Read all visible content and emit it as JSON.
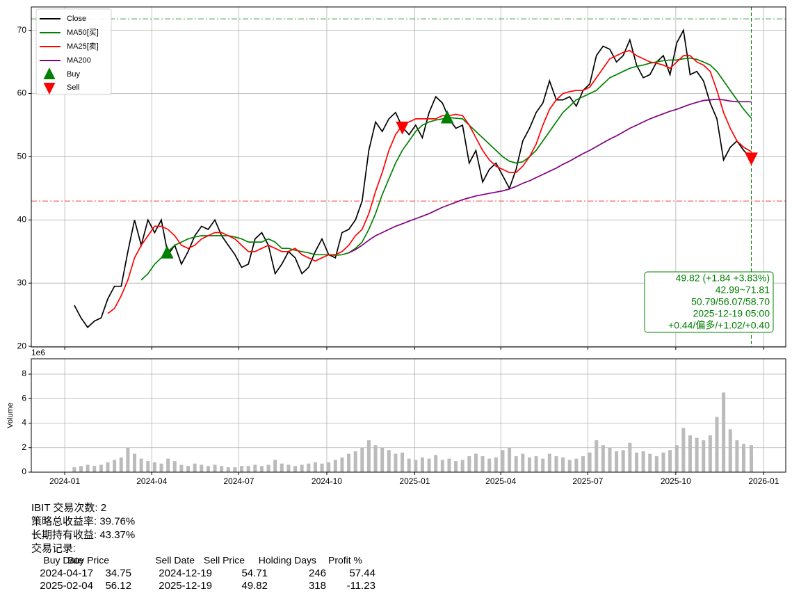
{
  "chart_data": [
    {
      "type": "line",
      "legend": "upper left",
      "grid": true,
      "ylim": [
        19.9,
        73.7
      ],
      "yticks": [
        20,
        30,
        40,
        50,
        60,
        70
      ],
      "xlim": [
        "2023-11-27",
        "2026-01-24"
      ],
      "xticks": [
        "2024-01",
        "2024-04",
        "2024-07",
        "2024-10",
        "2025-01",
        "2025-04",
        "2025-07",
        "2025-10",
        "2026-01"
      ],
      "x": [
        "2024-01-11",
        "2024-01-18",
        "2024-01-25",
        "2024-02-01",
        "2024-02-08",
        "2024-02-15",
        "2024-02-22",
        "2024-02-29",
        "2024-03-07",
        "2024-03-14",
        "2024-03-21",
        "2024-03-28",
        "2024-04-04",
        "2024-04-11",
        "2024-04-18",
        "2024-04-25",
        "2024-05-02",
        "2024-05-09",
        "2024-05-16",
        "2024-05-23",
        "2024-05-30",
        "2024-06-06",
        "2024-06-13",
        "2024-06-20",
        "2024-06-27",
        "2024-07-04",
        "2024-07-11",
        "2024-07-18",
        "2024-07-25",
        "2024-08-01",
        "2024-08-08",
        "2024-08-15",
        "2024-08-22",
        "2024-08-29",
        "2024-09-05",
        "2024-09-12",
        "2024-09-19",
        "2024-09-26",
        "2024-10-03",
        "2024-10-10",
        "2024-10-17",
        "2024-10-24",
        "2024-10-31",
        "2024-11-07",
        "2024-11-14",
        "2024-11-21",
        "2024-11-28",
        "2024-12-05",
        "2024-12-12",
        "2024-12-19",
        "2024-12-26",
        "2025-01-02",
        "2025-01-09",
        "2025-01-16",
        "2025-01-23",
        "2025-01-30",
        "2025-02-06",
        "2025-02-13",
        "2025-02-20",
        "2025-02-27",
        "2025-03-06",
        "2025-03-13",
        "2025-03-20",
        "2025-03-27",
        "2025-04-03",
        "2025-04-10",
        "2025-04-17",
        "2025-04-24",
        "2025-05-01",
        "2025-05-08",
        "2025-05-15",
        "2025-05-22",
        "2025-05-29",
        "2025-06-05",
        "2025-06-12",
        "2025-06-19",
        "2025-06-26",
        "2025-07-03",
        "2025-07-10",
        "2025-07-17",
        "2025-07-24",
        "2025-07-31",
        "2025-08-07",
        "2025-08-14",
        "2025-08-21",
        "2025-08-28",
        "2025-09-04",
        "2025-09-11",
        "2025-09-18",
        "2025-09-25",
        "2025-10-02",
        "2025-10-09",
        "2025-10-16",
        "2025-10-23",
        "2025-10-30",
        "2025-11-06",
        "2025-11-13",
        "2025-11-20",
        "2025-11-27",
        "2025-12-04",
        "2025-12-11",
        "2025-12-19"
      ],
      "series": [
        {
          "name": "Close",
          "color": "#000000",
          "values": [
            26.5,
            24.5,
            23.0,
            24.0,
            24.5,
            27.5,
            29.5,
            29.5,
            35,
            40,
            36,
            40,
            38,
            40,
            34.5,
            36,
            33,
            35,
            37.5,
            39,
            38.5,
            40,
            37.5,
            36,
            34.5,
            32.5,
            33,
            37,
            38,
            36,
            31.5,
            33,
            35,
            34,
            31.5,
            32.5,
            35,
            37,
            34.5,
            34,
            38,
            38.5,
            40,
            43,
            51,
            55.5,
            54,
            56,
            57,
            54.7,
            53.5,
            55,
            53,
            57,
            59.5,
            58.5,
            56,
            54.5,
            55,
            49,
            51,
            46,
            48,
            49,
            47,
            45,
            48,
            52.5,
            54.5,
            57,
            58.5,
            62,
            59,
            59,
            59.5,
            58,
            60.5,
            61.5,
            66,
            67.5,
            67,
            65,
            66,
            68.5,
            64.5,
            62.5,
            63,
            65,
            66,
            63,
            68,
            70,
            63,
            63.5,
            62,
            58.5,
            56,
            49.5,
            51.5,
            52.5,
            51,
            49.82
          ]
        },
        {
          "name": "MA50[买]",
          "color": "#008000",
          "values": [
            null,
            null,
            null,
            null,
            null,
            null,
            null,
            null,
            null,
            null,
            30.5,
            31.5,
            33,
            34,
            35,
            36,
            36.5,
            37,
            37.3,
            37.5,
            37.5,
            37.5,
            37.5,
            37.5,
            37.3,
            37,
            36.5,
            36.5,
            36.5,
            37,
            36.5,
            35.5,
            35.5,
            35.2,
            35,
            34.8,
            34.5,
            34.5,
            34.5,
            34.4,
            34.5,
            34.8,
            35.5,
            36.5,
            38.5,
            41,
            44,
            46.5,
            49,
            51,
            52.5,
            54,
            55,
            55.5,
            55.8,
            56,
            56.2,
            56.1,
            56,
            55,
            54,
            53,
            52,
            51,
            50,
            49.3,
            49,
            49.2,
            50,
            51,
            52.5,
            54,
            55.5,
            57,
            58,
            59,
            59.5,
            60,
            60.5,
            61.5,
            62.5,
            63,
            63.5,
            64,
            64.3,
            64.5,
            64.8,
            65,
            65.2,
            65.3,
            65.3,
            65.5,
            65.6,
            65.4,
            65,
            64.5,
            63.5,
            62,
            60.5,
            59,
            57.5,
            56.1
          ]
        },
        {
          "name": "MA25[卖]",
          "color": "#ff0000",
          "values": [
            null,
            null,
            null,
            null,
            null,
            25.2,
            26,
            28,
            30.5,
            34,
            36,
            37.5,
            39,
            39,
            38.5,
            37.5,
            36,
            35.5,
            36,
            37,
            37.5,
            38,
            38,
            37.5,
            37,
            36,
            35,
            35,
            35.5,
            36,
            35.5,
            35,
            35,
            35.5,
            34.5,
            34,
            33.5,
            34,
            34.5,
            34.5,
            35,
            36,
            37.5,
            38.5,
            41,
            44.5,
            47.5,
            51,
            53.5,
            55,
            55.5,
            56,
            56,
            56,
            56,
            56.5,
            56.5,
            56.7,
            56.5,
            55,
            53,
            51,
            49.5,
            48.5,
            48,
            47.5,
            47.5,
            48.5,
            50,
            52,
            55,
            57.5,
            59,
            60,
            60.3,
            60.5,
            60.5,
            61,
            62.5,
            64,
            65.5,
            66,
            66.5,
            66.8,
            66,
            65.5,
            65,
            64.8,
            64.5,
            64,
            65,
            66,
            66,
            65,
            64.5,
            63.5,
            60.5,
            57,
            54.5,
            52.5,
            51.5,
            50.8
          ]
        },
        {
          "name": "MA200",
          "color": "#800080",
          "values": [
            null,
            null,
            null,
            null,
            null,
            null,
            null,
            null,
            null,
            null,
            null,
            null,
            null,
            null,
            null,
            null,
            null,
            null,
            null,
            null,
            null,
            null,
            null,
            null,
            null,
            null,
            null,
            null,
            null,
            null,
            null,
            null,
            null,
            null,
            null,
            null,
            null,
            null,
            null,
            null,
            null,
            34.8,
            35.3,
            36,
            36.8,
            37.5,
            38,
            38.5,
            39,
            39.4,
            39.8,
            40.2,
            40.6,
            41,
            41.5,
            42,
            42.4,
            42.8,
            43.2,
            43.5,
            43.8,
            44,
            44.2,
            44.4,
            44.6,
            44.9,
            45.3,
            45.8,
            46.2,
            46.7,
            47.2,
            47.7,
            48.2,
            48.8,
            49.3,
            49.9,
            50.5,
            51,
            51.6,
            52.2,
            52.8,
            53.3,
            53.9,
            54.5,
            55,
            55.5,
            56,
            56.4,
            56.8,
            57.2,
            57.5,
            57.9,
            58.3,
            58.6,
            58.9,
            59,
            59.1,
            59,
            58.8,
            58.7,
            58.7,
            58.7
          ]
        }
      ],
      "markers": [
        {
          "name": "Buy",
          "color": "#008000",
          "marker": "^",
          "x": [
            "2024-04-17",
            "2025-02-04"
          ],
          "values": [
            34.75,
            56.12
          ]
        },
        {
          "name": "Sell",
          "color": "#ff0000",
          "marker": "v",
          "x": [
            "2024-12-19",
            "2025-12-19"
          ],
          "values": [
            54.71,
            49.82
          ]
        }
      ],
      "hlines": [
        {
          "value": 71.81,
          "color": "#008000"
        },
        {
          "value": 42.99,
          "color": "#ff0000"
        }
      ],
      "vline": {
        "x": "2025-12-19",
        "color": "#008000"
      },
      "annotation": [
        "49.82 (+1.84 +3.83%)",
        "42.99~71.81",
        "50.79/56.07/58.70",
        "2025-12-19 05:00",
        "+0.44/偏多/+1.02/+0.40"
      ],
      "annotation_color": "#008000"
    },
    {
      "type": "bar",
      "grid": true,
      "ylabel": "Volume",
      "offset_text": "1e6",
      "color": "#bbbbbb",
      "ylim": [
        0,
        9.25
      ],
      "yticks": [
        0,
        2,
        4,
        6,
        8
      ],
      "xlim": [
        "2023-11-27",
        "2026-01-24"
      ],
      "xticks": [
        "2024-01",
        "2024-04",
        "2024-07",
        "2024-10",
        "2025-01",
        "2025-04",
        "2025-07",
        "2025-10",
        "2026-01"
      ],
      "x": [
        "2024-01-11",
        "2024-01-18",
        "2024-01-25",
        "2024-02-01",
        "2024-02-08",
        "2024-02-15",
        "2024-02-22",
        "2024-02-29",
        "2024-03-07",
        "2024-03-14",
        "2024-03-21",
        "2024-03-28",
        "2024-04-04",
        "2024-04-11",
        "2024-04-18",
        "2024-04-25",
        "2024-05-02",
        "2024-05-09",
        "2024-05-16",
        "2024-05-23",
        "2024-05-30",
        "2024-06-06",
        "2024-06-13",
        "2024-06-20",
        "2024-06-27",
        "2024-07-04",
        "2024-07-11",
        "2024-07-18",
        "2024-07-25",
        "2024-08-01",
        "2024-08-08",
        "2024-08-15",
        "2024-08-22",
        "2024-08-29",
        "2024-09-05",
        "2024-09-12",
        "2024-09-19",
        "2024-09-26",
        "2024-10-03",
        "2024-10-10",
        "2024-10-17",
        "2024-10-24",
        "2024-10-31",
        "2024-11-07",
        "2024-11-14",
        "2024-11-21",
        "2024-11-28",
        "2024-12-05",
        "2024-12-12",
        "2024-12-19",
        "2024-12-26",
        "2025-01-02",
        "2025-01-09",
        "2025-01-16",
        "2025-01-23",
        "2025-01-30",
        "2025-02-06",
        "2025-02-13",
        "2025-02-20",
        "2025-02-27",
        "2025-03-06",
        "2025-03-13",
        "2025-03-20",
        "2025-03-27",
        "2025-04-03",
        "2025-04-10",
        "2025-04-17",
        "2025-04-24",
        "2025-05-01",
        "2025-05-08",
        "2025-05-15",
        "2025-05-22",
        "2025-05-29",
        "2025-06-05",
        "2025-06-12",
        "2025-06-19",
        "2025-06-26",
        "2025-07-03",
        "2025-07-10",
        "2025-07-17",
        "2025-07-24",
        "2025-07-31",
        "2025-08-07",
        "2025-08-14",
        "2025-08-21",
        "2025-08-28",
        "2025-09-04",
        "2025-09-11",
        "2025-09-18",
        "2025-09-25",
        "2025-10-02",
        "2025-10-09",
        "2025-10-16",
        "2025-10-23",
        "2025-10-30",
        "2025-11-06",
        "2025-11-13",
        "2025-11-20",
        "2025-11-27",
        "2025-12-04",
        "2025-12-11",
        "2025-12-19"
      ],
      "values": [
        0.4,
        0.5,
        0.6,
        0.5,
        0.6,
        0.8,
        1.0,
        1.2,
        2.0,
        1.5,
        1.1,
        0.9,
        0.8,
        0.7,
        1.1,
        0.9,
        0.6,
        0.5,
        0.7,
        0.6,
        0.5,
        0.6,
        0.5,
        0.4,
        0.4,
        0.5,
        0.5,
        0.6,
        0.5,
        0.6,
        1.0,
        0.7,
        0.6,
        0.5,
        0.6,
        0.7,
        0.8,
        0.7,
        0.8,
        1.0,
        1.2,
        1.5,
        1.7,
        2.0,
        2.6,
        2.2,
        2.0,
        1.8,
        1.5,
        1.6,
        1.1,
        1.0,
        1.2,
        1.1,
        1.4,
        1.0,
        1.1,
        0.9,
        1.0,
        1.3,
        1.5,
        1.3,
        1.1,
        1.2,
        1.8,
        2.0,
        1.3,
        1.5,
        1.2,
        1.3,
        1.1,
        1.5,
        1.3,
        1.2,
        1.0,
        1.1,
        1.3,
        1.6,
        2.6,
        2.2,
        2.0,
        1.7,
        1.8,
        2.4,
        1.6,
        1.7,
        1.5,
        1.3,
        1.6,
        1.8,
        2.2,
        3.6,
        3.0,
        2.8,
        2.6,
        3.0,
        4.5,
        6.5,
        3.5,
        2.6,
        2.3,
        2.2
      ]
    }
  ],
  "report": {
    "lines": [
      "IBIT 交易次数: 2",
      "策略总收益率: 39.76%",
      "长期持有收益: 43.37%",
      "交易记录:"
    ],
    "columns": [
      "Buy Date",
      "Buy Price",
      "Sell Date",
      "Sell Price",
      "Holding Days",
      "Profit %"
    ],
    "rows": [
      [
        "2024-04-17",
        34.75,
        "2024-12-19",
        54.71,
        246,
        57.44
      ],
      [
        "2025-02-04",
        56.12,
        "2025-12-19",
        49.82,
        318,
        -11.23
      ]
    ]
  }
}
